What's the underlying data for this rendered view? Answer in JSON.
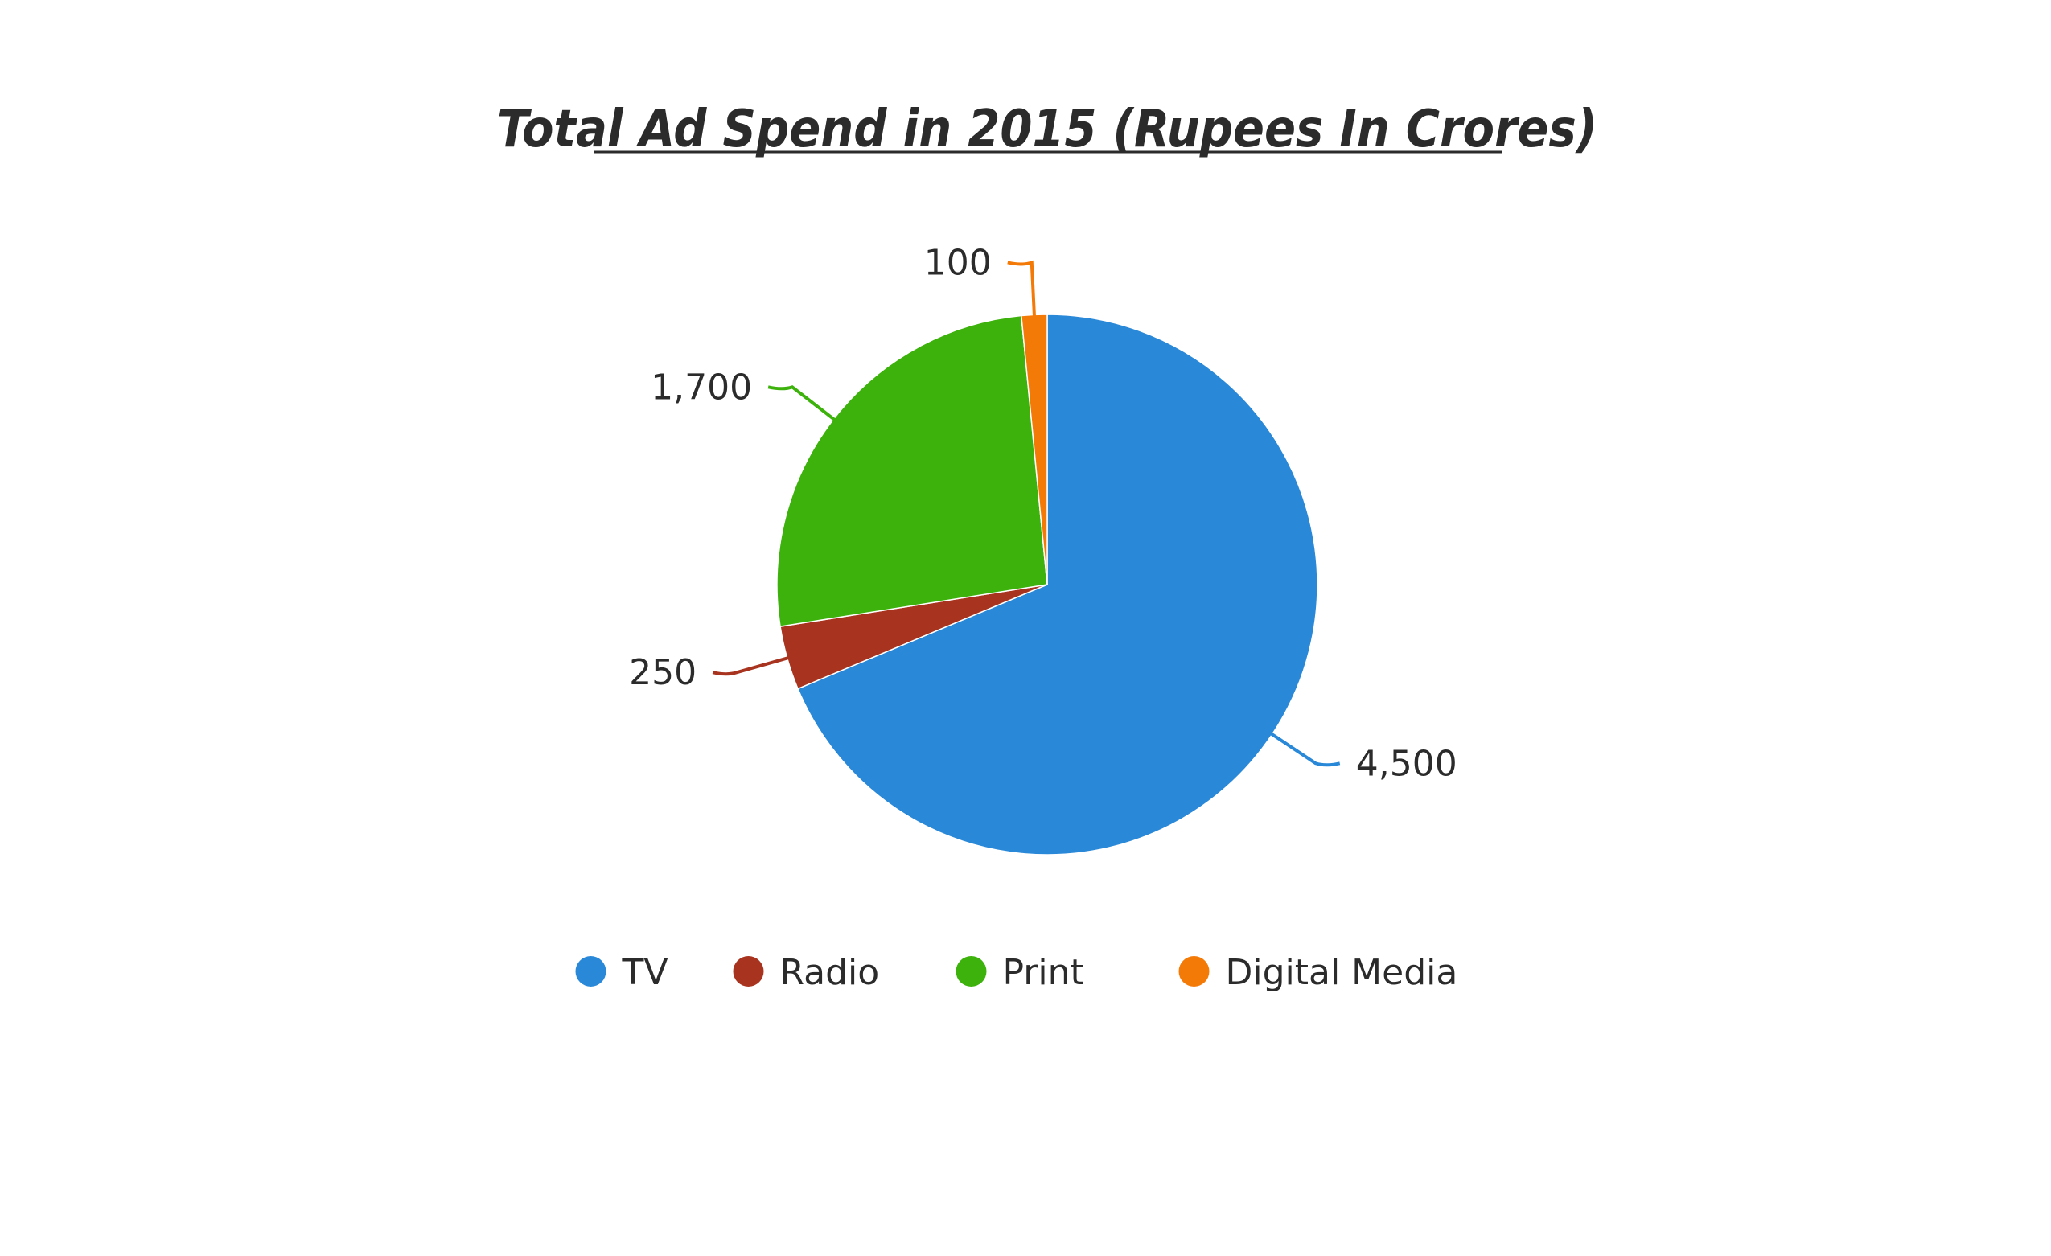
{
  "chart_data": {
    "type": "pie",
    "title": "Total Ad Spend in 2015 (Rupees In Crores)",
    "categories": [
      "TV",
      "Radio",
      "Print",
      "Digital Media"
    ],
    "values": [
      4500,
      250,
      1700,
      100
    ],
    "value_labels": [
      "4,500",
      "250",
      "1,700",
      "100"
    ],
    "colors": [
      "#2a88d8",
      "#a8331f",
      "#3db20c",
      "#f47a08"
    ],
    "start_angle_deg": 0,
    "direction": "clockwise",
    "legend": "bottom"
  }
}
